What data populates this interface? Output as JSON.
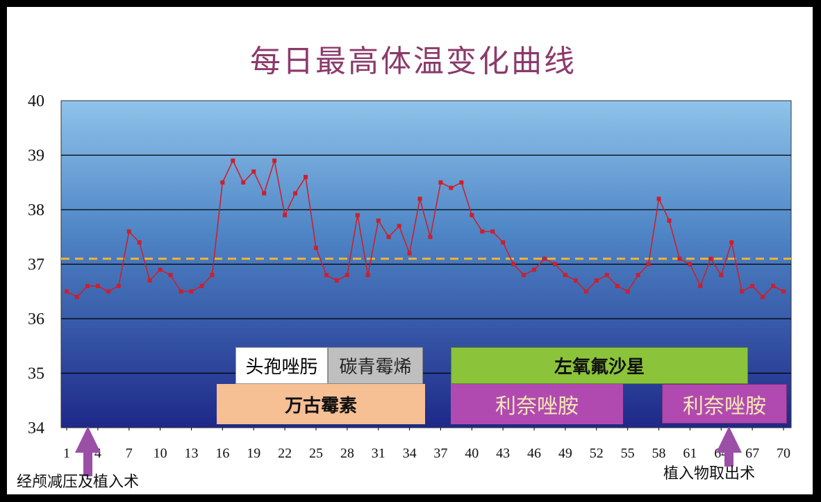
{
  "chart_data": {
    "type": "line",
    "title": "每日最高体温变化曲线",
    "xlabel": "",
    "ylabel": "",
    "ylim": [
      34,
      40
    ],
    "yticks": [
      "34",
      "35",
      "36",
      "37",
      "38",
      "39",
      "40"
    ],
    "xticks": [
      "1",
      "4",
      "7",
      "10",
      "13",
      "16",
      "19",
      "22",
      "25",
      "28",
      "31",
      "34",
      "37",
      "40",
      "43",
      "46",
      "49",
      "52",
      "55",
      "58",
      "61",
      "64",
      "67",
      "70"
    ],
    "grid": true,
    "reference_line": {
      "value": 37.1,
      "style": "dashed",
      "color": "#f2b233"
    },
    "series": [
      {
        "color": "#cc1f2e",
        "x": [
          1,
          2,
          3,
          4,
          5,
          6,
          7,
          8,
          9,
          10,
          11,
          12,
          13,
          14,
          15,
          16,
          17,
          18,
          19,
          20,
          21,
          22,
          23,
          24,
          25,
          26,
          27,
          28,
          29,
          30,
          31,
          32,
          33,
          34,
          35,
          36,
          37,
          38,
          39,
          40,
          41,
          42,
          43,
          44,
          45,
          46,
          47,
          48,
          49,
          50,
          51,
          52,
          53,
          54,
          55,
          56,
          57,
          58,
          59,
          60,
          61,
          62,
          63,
          64,
          65,
          66,
          67,
          68,
          69,
          70
        ],
        "values": [
          36.5,
          36.4,
          36.6,
          36.6,
          36.5,
          36.6,
          37.6,
          37.4,
          36.7,
          36.9,
          36.8,
          36.5,
          36.5,
          36.6,
          36.8,
          38.5,
          38.9,
          38.5,
          38.7,
          38.3,
          38.9,
          37.9,
          38.3,
          38.6,
          37.3,
          36.8,
          36.7,
          36.8,
          37.9,
          36.8,
          37.8,
          37.5,
          37.7,
          37.2,
          38.2,
          37.5,
          38.5,
          38.4,
          38.5,
          37.9,
          37.6,
          37.6,
          37.4,
          37.0,
          36.8,
          36.9,
          37.1,
          37.0,
          36.8,
          36.7,
          36.5,
          36.7,
          36.8,
          36.6,
          36.5,
          36.8,
          37.0,
          38.2,
          37.8,
          37.1,
          37.0,
          36.6,
          37.1,
          36.8,
          37.4,
          36.5,
          36.6,
          36.4,
          36.6,
          36.5
        ]
      }
    ]
  },
  "drugs": {
    "d1": "头孢唑肟",
    "d2": "碳青霉烯",
    "d3": "万古霉素",
    "d4": "左氧氟沙星",
    "d5": "利奈唑胺",
    "d6": "利奈唑胺"
  },
  "annotations": {
    "left": "经颅减压及植入术",
    "right": "植入物取出术"
  },
  "colors": {
    "title": "#8b3a6b",
    "line": "#cc1f2e",
    "reference": "#f2b233",
    "plot_top": "#8fc3ea",
    "plot_bottom": "#1e2888",
    "arrow": "#9b4fa6"
  }
}
